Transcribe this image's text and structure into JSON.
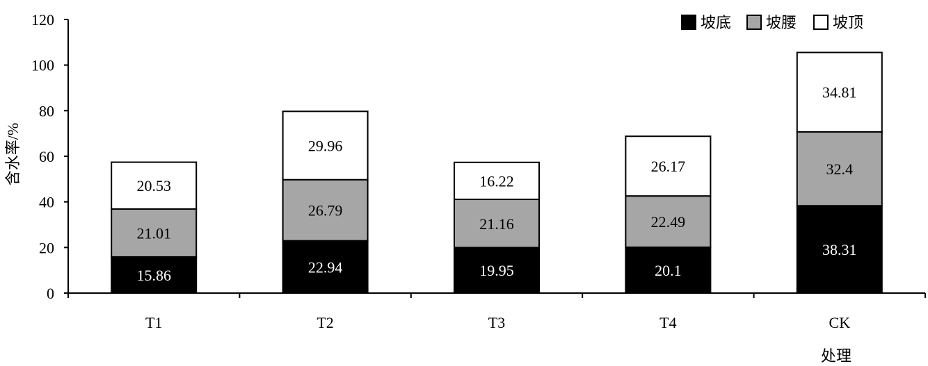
{
  "chart_data": {
    "type": "bar",
    "stacked": true,
    "categories": [
      "T1",
      "T2",
      "T3",
      "T4",
      "CK"
    ],
    "series": [
      {
        "name": "坡底",
        "color": "#000000",
        "label_color": "#ffffff",
        "values": [
          15.86,
          22.94,
          19.95,
          20.1,
          38.31
        ]
      },
      {
        "name": "坡腰",
        "color": "#a6a6a6",
        "label_color": "#000000",
        "values": [
          21.01,
          26.79,
          21.16,
          22.49,
          32.4
        ]
      },
      {
        "name": "坡顶",
        "color": "#ffffff",
        "label_color": "#000000",
        "values": [
          20.53,
          29.96,
          16.22,
          26.17,
          34.81
        ]
      }
    ],
    "xlabel": "处理",
    "ylabel": "含水率/%",
    "ylim": [
      0,
      120
    ],
    "yticks": [
      0,
      20,
      40,
      60,
      80,
      100,
      120
    ],
    "grid": false,
    "legend_position": "top-right"
  }
}
